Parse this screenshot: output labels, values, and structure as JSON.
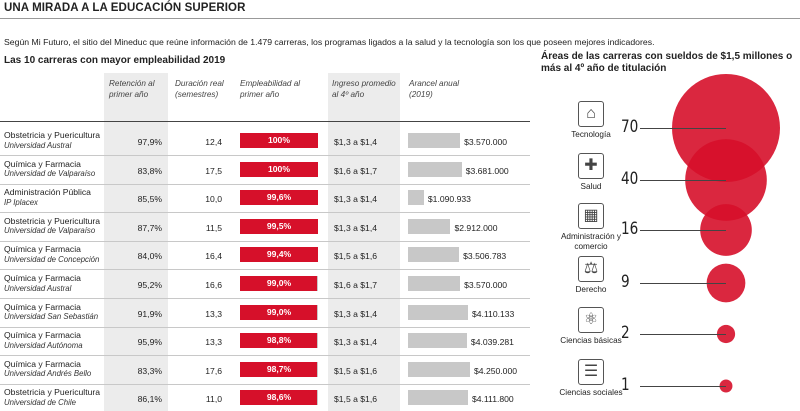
{
  "header": {
    "title": "UNA MIRADA A LA EDUCACIÓN SUPERIOR",
    "intro": "Según Mi Futuro, el sitio del Mineduc que reúne información de 1.479 carreras, los programas ligados a la salud y la tecnología son los que poseen mejores indicadores."
  },
  "table": {
    "title": "Las 10 carreras con mayor empleabilidad 2019",
    "headers": {
      "retencion": "Retención al primer año",
      "duracion": "Duración real (semestres)",
      "empleabilidad": "Empleabilidad al primer año",
      "ingreso": "Ingreso promedio al 4º año",
      "arancel": "Arancel anual (2019)"
    },
    "colors": {
      "empleabilidad": "#d6102a",
      "track": "#c8c8c8",
      "shade": "#ececec"
    }
  },
  "chart_data": [
    {
      "type": "table",
      "title": "Las 10 carreras con mayor empleabilidad 2019",
      "columns": [
        "Retención al primer año",
        "Duración real (semestres)",
        "Empleabilidad al primer año",
        "Ingreso promedio al 4º año",
        "Arancel anual (2019)"
      ],
      "rows": [
        {
          "carrera": "Obstetricia y Puericultura",
          "universidad": "Universidad Austral",
          "retencion": "97,9%",
          "duracion": "12,4",
          "empleabilidad": "100%",
          "empleabilidad_value": 100,
          "ingreso": "$1,3 a $1,4",
          "arancel": "$3.570.000",
          "arancel_value": 3570000
        },
        {
          "carrera": "Química y Farmacia",
          "universidad": "Universidad de Valparaíso",
          "retencion": "83,8%",
          "duracion": "17,5",
          "empleabilidad": "100%",
          "empleabilidad_value": 100,
          "ingreso": "$1,6 a $1,7",
          "arancel": "$3.681.000",
          "arancel_value": 3681000
        },
        {
          "carrera": "Administración Pública",
          "universidad": "IP Iplacex",
          "retencion": "85,5%",
          "duracion": "10,0",
          "empleabilidad": "99,6%",
          "empleabilidad_value": 99.6,
          "ingreso": "$1,3 a $1,4",
          "arancel": "$1.090.933",
          "arancel_value": 1090933
        },
        {
          "carrera": "Obstetricia y Puericultura",
          "universidad": "Universidad de Valparaíso",
          "retencion": "87,7%",
          "duracion": "11,5",
          "empleabilidad": "99,5%",
          "empleabilidad_value": 99.5,
          "ingreso": "$1,3 a $1,4",
          "arancel": "$2.912.000",
          "arancel_value": 2912000
        },
        {
          "carrera": "Química y Farmacia",
          "universidad": "Universidad de Concepción",
          "retencion": "84,0%",
          "duracion": "16,4",
          "empleabilidad": "99,4%",
          "empleabilidad_value": 99.4,
          "ingreso": "$1,5 a $1,6",
          "arancel": "$3.506.783",
          "arancel_value": 3506783
        },
        {
          "carrera": "Química y Farmacia",
          "universidad": "Universidad Austral",
          "retencion": "95,2%",
          "duracion": "16,6",
          "empleabilidad": "99,0%",
          "empleabilidad_value": 99.0,
          "ingreso": "$1,6 a $1,7",
          "arancel": "$3.570.000",
          "arancel_value": 3570000
        },
        {
          "carrera": "Química y Farmacia",
          "universidad": "Universidad San Sebastián",
          "retencion": "91,9%",
          "duracion": "13,3",
          "empleabilidad": "99,0%",
          "empleabilidad_value": 99.0,
          "ingreso": "$1,3 a $1,4",
          "arancel": "$4.110.133",
          "arancel_value": 4110133
        },
        {
          "carrera": "Química y Farmacia",
          "universidad": "Universidad Autónoma",
          "retencion": "95,9%",
          "duracion": "13,3",
          "empleabilidad": "98,8%",
          "empleabilidad_value": 98.8,
          "ingreso": "$1,3 a $1,4",
          "arancel": "$4.039.281",
          "arancel_value": 4039281
        },
        {
          "carrera": "Química y Farmacia",
          "universidad": "Universidad Andrés Bello",
          "retencion": "83,3%",
          "duracion": "17,6",
          "empleabilidad": "98,7%",
          "empleabilidad_value": 98.7,
          "ingreso": "$1,5 a $1,6",
          "arancel": "$4.250.000",
          "arancel_value": 4250000
        },
        {
          "carrera": "Obstetricia y Puericultura",
          "universidad": "Universidad de Chile",
          "retencion": "86,1%",
          "duracion": "11,0",
          "empleabilidad": "98,6%",
          "empleabilidad_value": 98.6,
          "ingreso": "$1,5 a $1,6",
          "arancel": "$4.111.800",
          "arancel_value": 4111800
        }
      ]
    },
    {
      "type": "scatter",
      "title": "Áreas de las carreras con sueldos de $1,5 millones o más al 4º año de titulación",
      "color": "#d6102a",
      "categories": [
        "Tecnología",
        "Salud",
        "Administración y comercio",
        "Derecho",
        "Ciencias básicas",
        "Ciencias sociales"
      ],
      "values": [
        70,
        40,
        16,
        9,
        2,
        1
      ],
      "icons": [
        "network-icon",
        "medkit-icon",
        "cash-register-icon",
        "gavel-icon",
        "atom-icon",
        "books-icon"
      ]
    }
  ]
}
